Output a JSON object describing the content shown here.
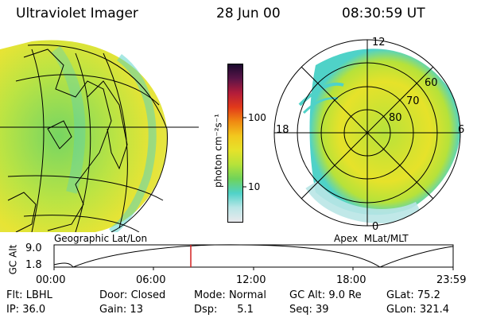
{
  "header": {
    "instrument": "Ultraviolet Imager",
    "date": "28 Jun 00",
    "time": "08:30:59 UT"
  },
  "colorbar": {
    "unit_label": "photon cm⁻²s⁻¹",
    "ticks": [
      "100",
      "10"
    ],
    "colors": [
      "#e8e8ec",
      "#b9e6e6",
      "#4fd2c8",
      "#6fd35a",
      "#b6e23a",
      "#e6e22a",
      "#f2c81e",
      "#f08a12",
      "#e23a1a",
      "#b31c3a",
      "#5a1447",
      "#1a0a2e"
    ]
  },
  "left_panel": {
    "label": "Geographic Lat/Lon"
  },
  "right_panel": {
    "label": "Apex  MLat/MLT",
    "mlt_labels": {
      "top": "12",
      "left": "18",
      "right": "6",
      "bottom": "0"
    },
    "lat_labels": [
      "60",
      "70",
      "80"
    ]
  },
  "altitude_plot": {
    "ylabel": "GC Alt",
    "yticks": [
      "9.0",
      "1.8"
    ],
    "xticks": [
      "00:00",
      "06:00",
      "12:00",
      "18:00",
      "23:59"
    ],
    "marker_color": "#d22020"
  },
  "info": {
    "row1": [
      {
        "label": "Flt:",
        "value": "LBHL"
      },
      {
        "label": "Door:",
        "value": "Closed"
      },
      {
        "label": "Mode:",
        "value": "Normal"
      },
      {
        "label": "GC Alt:",
        "value": "9.0 Re"
      },
      {
        "label": "GLat:",
        "value": "75.2"
      }
    ],
    "row2": [
      {
        "label": "IP:",
        "value": "36.0"
      },
      {
        "label": "Gain:",
        "value": "13"
      },
      {
        "label": "Dsp:",
        "value": "5.1"
      },
      {
        "label": "Seq:",
        "value": "39"
      },
      {
        "label": "GLon:",
        "value": "321.4"
      }
    ]
  }
}
